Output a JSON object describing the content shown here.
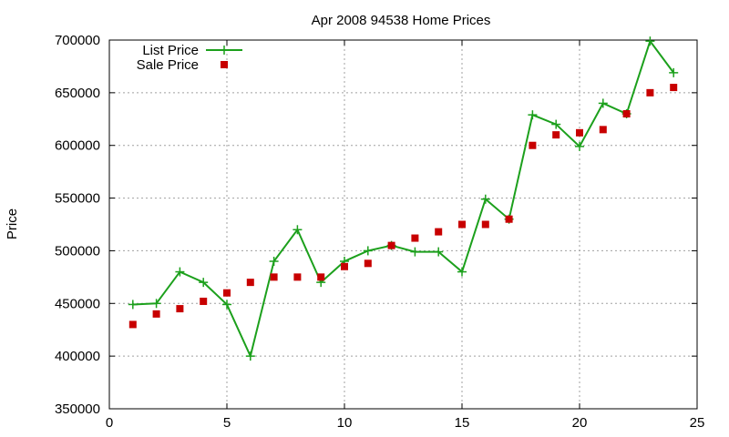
{
  "chart_data": {
    "type": "line",
    "title": "Apr 2008 94538 Home Prices",
    "xlabel": "",
    "ylabel": "Price",
    "xlim": [
      0,
      25
    ],
    "ylim": [
      350000,
      700000
    ],
    "x_ticks": [
      "0",
      "5",
      "10",
      "15",
      "20",
      "25"
    ],
    "y_ticks": [
      "350000",
      "400000",
      "450000",
      "500000",
      "550000",
      "600000",
      "650000",
      "700000"
    ],
    "x_tick_values": [
      0,
      5,
      10,
      15,
      20,
      25
    ],
    "y_tick_values": [
      350000,
      400000,
      450000,
      500000,
      550000,
      600000,
      650000,
      700000
    ],
    "grid": true,
    "legend_position": "top-left",
    "x": [
      1,
      2,
      3,
      4,
      5,
      6,
      7,
      8,
      9,
      10,
      11,
      12,
      13,
      14,
      15,
      16,
      17,
      18,
      19,
      20,
      21,
      22,
      23,
      24
    ],
    "series": [
      {
        "name": "List Price",
        "style": "linespoints",
        "marker": "plus",
        "color": "#1ca01c",
        "values": [
          449000,
          450000,
          480000,
          470000,
          449000,
          400000,
          490000,
          520000,
          470000,
          490000,
          500000,
          505000,
          499000,
          499000,
          480000,
          549000,
          530000,
          629000,
          620000,
          599000,
          640000,
          630000,
          699000,
          669000
        ]
      },
      {
        "name": "Sale Price",
        "style": "points",
        "marker": "square",
        "color": "#c80000",
        "values": [
          430000,
          440000,
          445000,
          452000,
          460000,
          470000,
          475000,
          475000,
          475000,
          485000,
          488000,
          505000,
          512000,
          518000,
          525000,
          525000,
          530000,
          600000,
          610000,
          612000,
          615000,
          630000,
          650000,
          655000
        ]
      }
    ]
  }
}
